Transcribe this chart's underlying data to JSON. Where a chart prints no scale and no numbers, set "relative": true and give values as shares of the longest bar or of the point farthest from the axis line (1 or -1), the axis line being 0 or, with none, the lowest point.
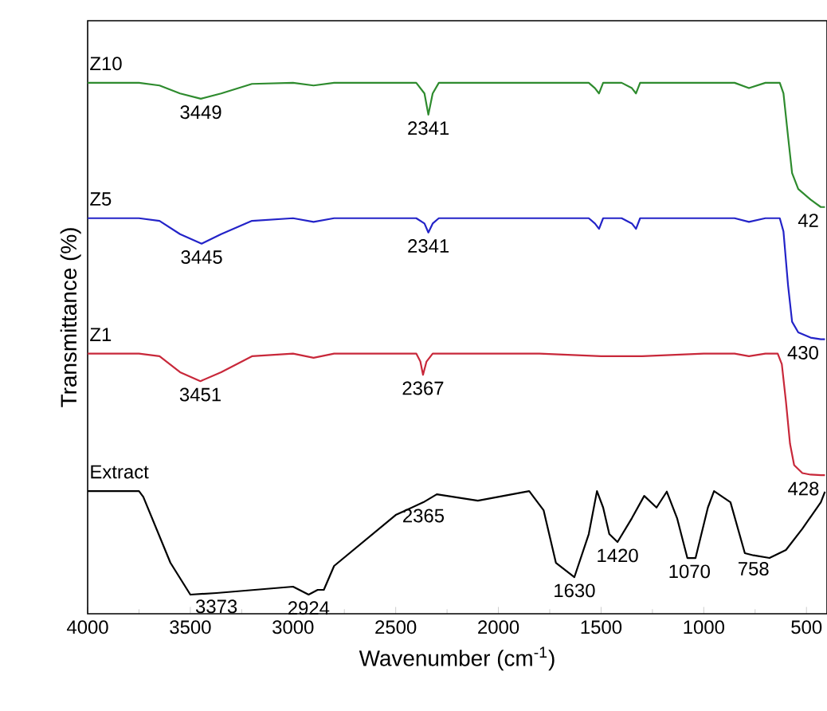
{
  "chart_data": {
    "type": "line",
    "relative": true,
    "xlabel": "Wavenumber (cm$^{-1}$)",
    "ylabel": "Transmittance (%)",
    "xlim": [
      4000,
      400
    ],
    "xticks": [
      4000,
      3500,
      3000,
      2500,
      2000,
      1500,
      1000,
      500
    ],
    "grid": false,
    "marker": "none",
    "line_style": "solid",
    "series": [
      {
        "name": "Z10",
        "color": "#2e8b2e",
        "x": [
          4000,
          3750,
          3650,
          3550,
          3449,
          3350,
          3200,
          3000,
          2900,
          2800,
          2400,
          2360,
          2341,
          2320,
          2290,
          1800,
          1560,
          1530,
          1510,
          1490,
          1400,
          1350,
          1330,
          1310,
          1000,
          850,
          780,
          700,
          630,
          612,
          590,
          570,
          540,
          480,
          430,
          410
        ],
        "values": [
          1.0,
          1.0,
          0.995,
          0.98,
          0.97,
          0.98,
          0.998,
          1.0,
          0.995,
          1.0,
          1.0,
          0.98,
          0.94,
          0.98,
          1.0,
          1.0,
          1.0,
          0.99,
          0.98,
          1.0,
          1.0,
          0.99,
          0.98,
          1.0,
          1.0,
          1.0,
          0.99,
          1.0,
          1.0,
          0.98,
          0.9,
          0.83,
          0.8,
          0.78,
          0.766,
          0.766
        ]
      },
      {
        "name": "Z5",
        "color": "#2323c8",
        "x": [
          4000,
          3750,
          3650,
          3550,
          3445,
          3350,
          3200,
          3000,
          2900,
          2800,
          2400,
          2360,
          2341,
          2320,
          2290,
          1800,
          1560,
          1530,
          1510,
          1490,
          1400,
          1350,
          1330,
          1310,
          1000,
          850,
          780,
          700,
          630,
          612,
          590,
          570,
          540,
          480,
          430,
          410
        ],
        "values": [
          0.745,
          0.745,
          0.74,
          0.715,
          0.697,
          0.715,
          0.74,
          0.745,
          0.738,
          0.745,
          0.745,
          0.735,
          0.718,
          0.735,
          0.745,
          0.745,
          0.745,
          0.735,
          0.725,
          0.745,
          0.745,
          0.735,
          0.725,
          0.745,
          0.745,
          0.745,
          0.738,
          0.745,
          0.745,
          0.72,
          0.62,
          0.55,
          0.53,
          0.52,
          0.517,
          0.517
        ]
      },
      {
        "name": "Z1",
        "color": "#c8283a",
        "x": [
          4000,
          3750,
          3650,
          3550,
          3451,
          3350,
          3200,
          3000,
          2900,
          2800,
          2400,
          2380,
          2367,
          2350,
          2320,
          1800,
          1500,
          1300,
          1000,
          850,
          780,
          700,
          640,
          620,
          600,
          580,
          560,
          520,
          480,
          428,
          410
        ],
        "values": [
          0.49,
          0.49,
          0.485,
          0.455,
          0.438,
          0.455,
          0.485,
          0.49,
          0.482,
          0.49,
          0.49,
          0.475,
          0.45,
          0.475,
          0.49,
          0.49,
          0.485,
          0.485,
          0.49,
          0.49,
          0.485,
          0.49,
          0.49,
          0.47,
          0.4,
          0.32,
          0.28,
          0.265,
          0.262,
          0.261,
          0.261
        ]
      },
      {
        "name": "Extract",
        "color": "#000000",
        "x": [
          4000,
          3750,
          3729,
          3597,
          3500,
          3373,
          3000,
          2924,
          2880,
          2850,
          2800,
          2500,
          2365,
          2300,
          2100,
          1850,
          1780,
          1720,
          1630,
          1560,
          1520,
          1490,
          1460,
          1420,
          1350,
          1290,
          1230,
          1180,
          1130,
          1080,
          1040,
          980,
          950,
          870,
          800,
          758,
          680,
          600,
          520,
          430,
          410
        ],
        "values": [
          0.231,
          0.231,
          0.22,
          0.096,
          0.036,
          0.039,
          0.051,
          0.036,
          0.045,
          0.045,
          0.09,
          0.186,
          0.21,
          0.225,
          0.213,
          0.231,
          0.195,
          0.096,
          0.069,
          0.15,
          0.231,
          0.2,
          0.15,
          0.135,
          0.18,
          0.222,
          0.2,
          0.23,
          0.18,
          0.105,
          0.105,
          0.2,
          0.231,
          0.21,
          0.114,
          0.11,
          0.105,
          0.12,
          0.16,
          0.21,
          0.23
        ]
      }
    ],
    "annotations": [
      {
        "text": "3449",
        "x": 3449,
        "y": 0.97
      },
      {
        "text": "2341",
        "x": 2341,
        "y": 0.94
      },
      {
        "text": "42",
        "x": 430,
        "y": 0.766
      },
      {
        "text": "3445",
        "x": 3445,
        "y": 0.697
      },
      {
        "text": "2341",
        "x": 2341,
        "y": 0.718
      },
      {
        "text": "430",
        "x": 430,
        "y": 0.517
      },
      {
        "text": "3451",
        "x": 3451,
        "y": 0.438
      },
      {
        "text": "2367",
        "x": 2367,
        "y": 0.45
      },
      {
        "text": "428",
        "x": 428,
        "y": 0.261
      },
      {
        "text": "3373",
        "x": 3373,
        "y": 0.039
      },
      {
        "text": "2924",
        "x": 2924,
        "y": 0.036
      },
      {
        "text": "2365",
        "x": 2365,
        "y": 0.21
      },
      {
        "text": "1630",
        "x": 1630,
        "y": 0.069
      },
      {
        "text": "1420",
        "x": 1420,
        "y": 0.135
      },
      {
        "text": "1070",
        "x": 1070,
        "y": 0.105
      },
      {
        "text": "758",
        "x": 758,
        "y": 0.11
      }
    ]
  }
}
